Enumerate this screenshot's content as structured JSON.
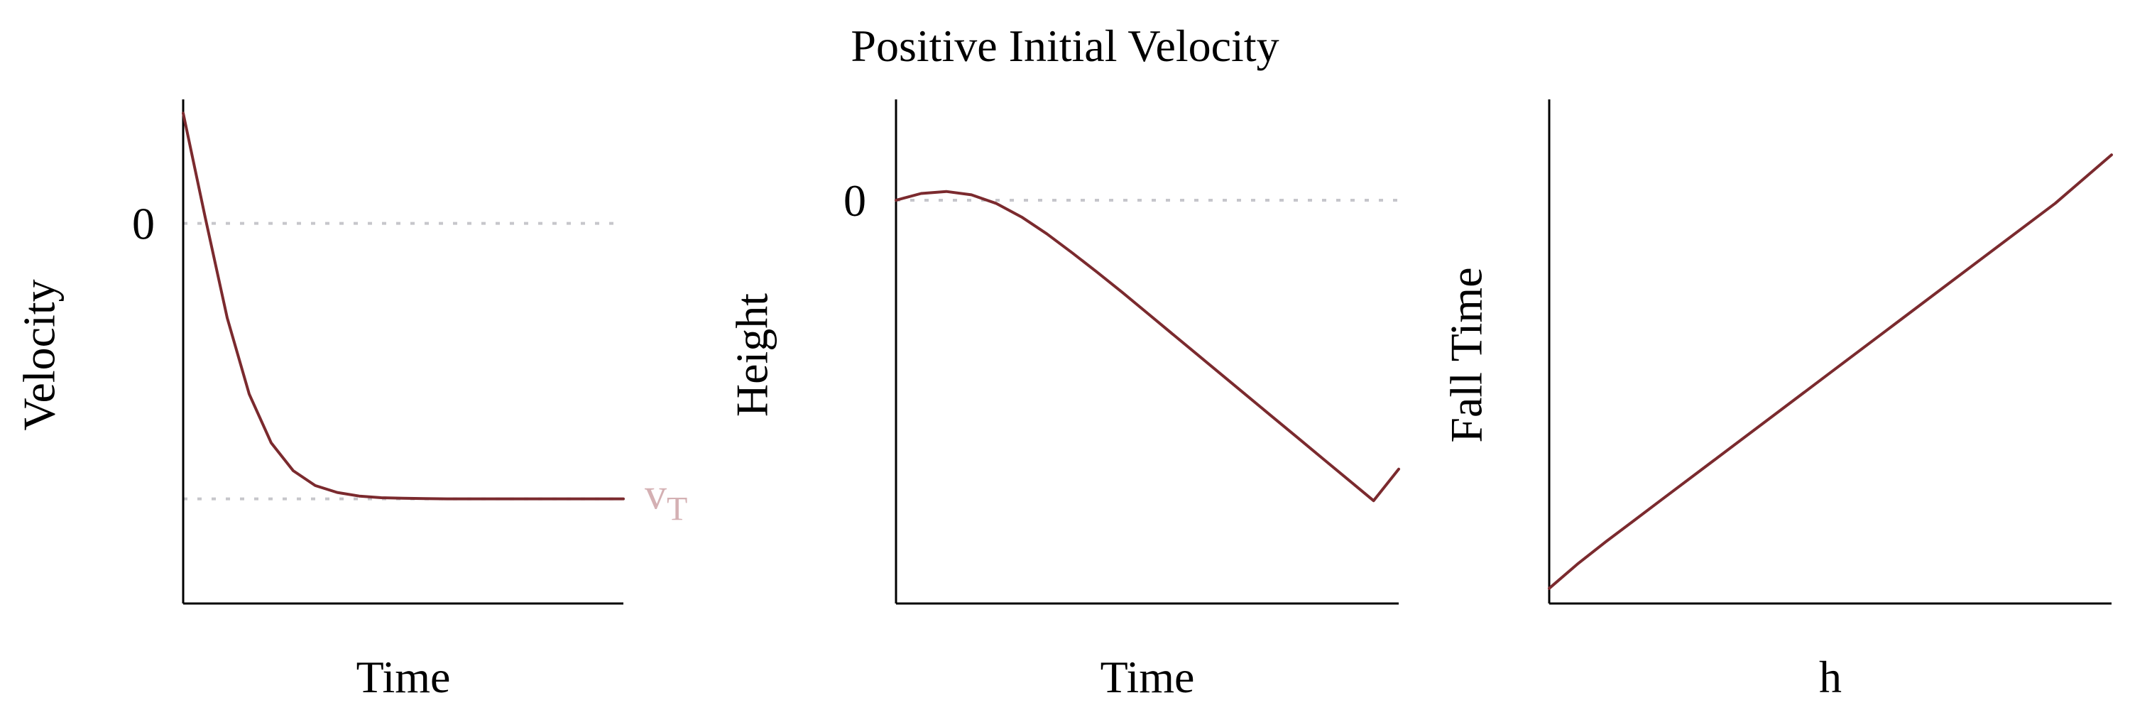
{
  "figure": {
    "title": "Positive Initial Velocity",
    "colors": {
      "curve": "#7b2a2e",
      "terminal_label": "#d4b0b3",
      "reference": "#c6c6cb",
      "axis": "#000000"
    }
  },
  "chart_data": [
    {
      "type": "line",
      "title": "",
      "xlabel": "Time",
      "ylabel": "Velocity",
      "xlim": [
        0,
        10
      ],
      "ylim": [
        -1.38,
        0.45
      ],
      "y_ticks": [
        {
          "value": 0,
          "label": "0"
        }
      ],
      "x_ticks": [],
      "reference_lines": [
        {
          "y": 0,
          "style": "dotted"
        },
        {
          "y": -1,
          "style": "dotted",
          "label": "v",
          "label_subscript": "T"
        }
      ],
      "grid": false,
      "series": [
        {
          "x": [
            0,
            0.5,
            1,
            1.5,
            2,
            2.5,
            3,
            3.5,
            4,
            4.5,
            5,
            5.5,
            6,
            6.5,
            7,
            7.5,
            8,
            8.5,
            9,
            9.5,
            10
          ],
          "y": [
            0.4,
            0.022,
            -0.343,
            -0.62,
            -0.797,
            -0.898,
            -0.952,
            -0.977,
            -0.99,
            -0.996,
            -0.998,
            -0.999,
            -1.0,
            -1.0,
            -1.0,
            -1.0,
            -1.0,
            -1.0,
            -1.0,
            -1.0,
            -1.0
          ]
        }
      ]
    },
    {
      "type": "line",
      "title": "",
      "xlabel": "Time",
      "ylabel": "Height",
      "xlim": [
        0,
        10
      ],
      "ylim": [
        -6.0,
        1.5
      ],
      "y_ticks": [
        {
          "value": 0,
          "label": "0"
        }
      ],
      "x_ticks": [],
      "reference_lines": [
        {
          "y": 0,
          "style": "dotted"
        }
      ],
      "grid": false,
      "series": [
        {
          "x": [
            0,
            0.5,
            1,
            1.5,
            2,
            2.5,
            3,
            3.5,
            4,
            4.5,
            5,
            5.5,
            6,
            6.5,
            7,
            7.5,
            8,
            8.5,
            9,
            9.5,
            10
          ],
          "y": [
            0,
            0.1,
            0.13,
            0.08,
            -0.05,
            -0.25,
            -0.5,
            -0.78,
            -1.07,
            -1.37,
            -1.68,
            -1.99,
            -2.3,
            -2.61,
            -2.92,
            -3.23,
            -3.54,
            -3.85,
            -4.16,
            -4.47,
            -4.0
          ]
        }
      ]
    },
    {
      "type": "line",
      "title": "",
      "xlabel": "h",
      "ylabel": "Fall Time",
      "xlim": [
        0,
        10
      ],
      "ylim": [
        0,
        10
      ],
      "y_ticks": [],
      "x_ticks": [],
      "reference_lines": [],
      "grid": false,
      "series": [
        {
          "x": [
            0,
            0.5,
            1,
            1.5,
            2,
            3,
            4,
            5,
            6,
            7,
            8,
            9,
            10
          ],
          "y": [
            0.3,
            0.78,
            1.22,
            1.64,
            2.06,
            2.9,
            3.74,
            4.58,
            5.42,
            6.26,
            7.1,
            7.94,
            8.9
          ]
        }
      ]
    }
  ]
}
